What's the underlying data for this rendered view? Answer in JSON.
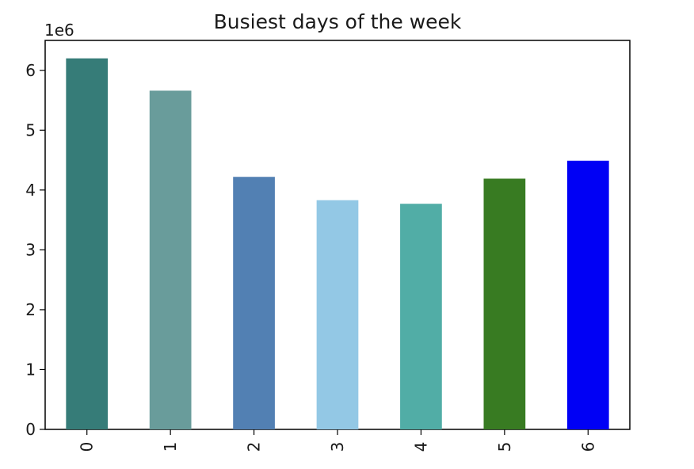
{
  "chart_data": {
    "type": "bar",
    "title": "Busiest days of the week",
    "xlabel": "",
    "ylabel": "",
    "categories": [
      "0",
      "1",
      "2",
      "3",
      "4",
      "5",
      "6"
    ],
    "values": [
      6200000,
      5660000,
      4220000,
      3830000,
      3770000,
      4190000,
      4490000
    ],
    "colors": [
      "#367c78",
      "#699c9b",
      "#5280b3",
      "#93c8e5",
      "#51ada6",
      "#387b22",
      "#0000f5"
    ],
    "ylim": [
      0,
      6500000
    ],
    "yticks": [
      0,
      1,
      2,
      3,
      4,
      5,
      6
    ],
    "y_offset_label": "1e6",
    "y_scale": 1000000,
    "x_tick_rotation": "vertical",
    "grid": false,
    "legend": "none"
  }
}
